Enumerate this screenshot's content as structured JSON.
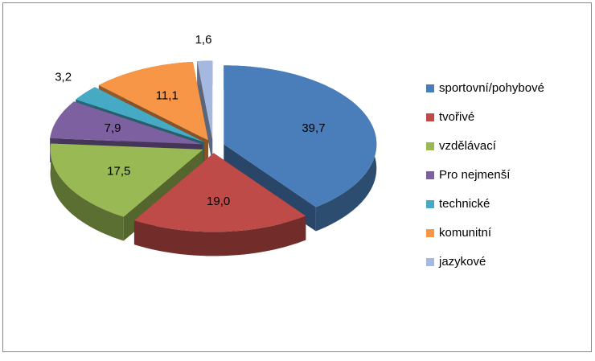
{
  "chart_data": {
    "type": "pie",
    "categories": [
      "sportovní/pohybové",
      "tvořivé",
      "vzdělávací",
      "Pro nejmenší",
      "technické",
      "komunitní",
      "jazykové"
    ],
    "values": [
      39.7,
      19.0,
      17.5,
      7.9,
      3.2,
      11.1,
      1.6
    ],
    "value_labels": [
      "39,7",
      "19,0",
      "17,5",
      "7,9",
      "3,2",
      "11,1",
      "1,6"
    ],
    "colors": [
      "#4a7ebb",
      "#be4b48",
      "#98b954",
      "#7d60a0",
      "#46aac5",
      "#f79646",
      "#a5b9e0"
    ],
    "legend": "right"
  }
}
